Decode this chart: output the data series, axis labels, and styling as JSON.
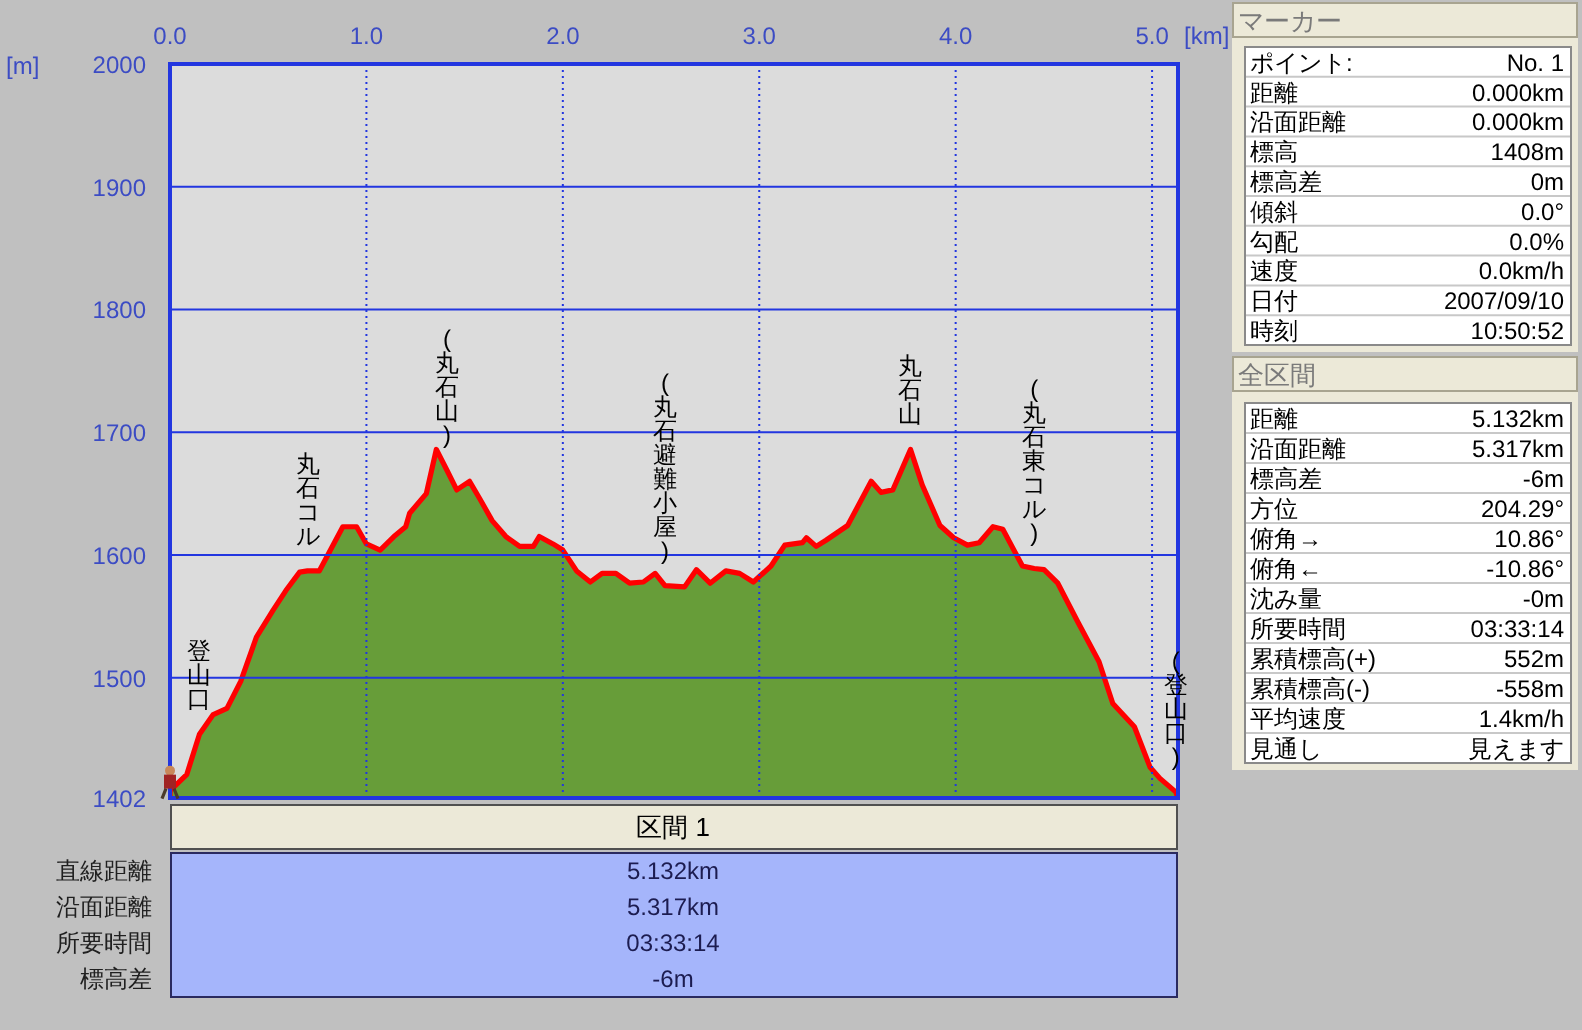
{
  "chart_data": [
    {
      "type": "area",
      "xlabel": "[km]",
      "ylabel": "[m]",
      "color": "#679d39",
      "x": [
        0,
        0.085,
        0.15,
        0.22,
        0.29,
        0.36,
        0.44,
        0.525,
        0.59,
        0.66,
        0.7,
        0.76,
        0.88,
        0.95,
        1.0,
        1.07,
        1.14,
        1.2,
        1.22,
        1.305,
        1.356,
        1.41,
        1.46,
        1.525,
        1.58,
        1.64,
        1.71,
        1.78,
        1.85,
        1.88,
        1.95,
        2.0,
        2.07,
        2.14,
        2.2,
        2.27,
        2.34,
        2.41,
        2.47,
        2.52,
        2.62,
        2.68,
        2.75,
        2.83,
        2.9,
        2.97,
        3.06,
        3.13,
        3.22,
        3.24,
        3.29,
        3.34,
        3.45,
        3.57,
        3.62,
        3.68,
        3.77,
        3.83,
        3.92,
        3.99,
        4.06,
        4.12,
        4.19,
        4.24,
        4.34,
        4.4,
        4.45,
        4.52,
        4.62,
        4.73,
        4.8,
        4.91,
        4.99,
        5.04,
        5.12,
        5.132
      ],
      "values": [
        1408,
        1421,
        1454,
        1470,
        1475,
        1497,
        1533,
        1555,
        1571,
        1586,
        1587,
        1587,
        1623,
        1623,
        1609,
        1604,
        1615,
        1623,
        1634,
        1650,
        1686,
        1669,
        1653,
        1660,
        1645,
        1628,
        1615,
        1607,
        1607,
        1615,
        1609,
        1604,
        1587,
        1578,
        1585,
        1585,
        1577,
        1578,
        1585,
        1575,
        1574,
        1588,
        1577,
        1587,
        1585,
        1578,
        1591,
        1608,
        1610,
        1614,
        1607,
        1612,
        1624,
        1660,
        1651,
        1653,
        1686,
        1657,
        1624,
        1614,
        1608,
        1610,
        1623,
        1621,
        1591,
        1589,
        1588,
        1577,
        1546,
        1513,
        1479,
        1460,
        1427,
        1418,
        1407,
        1402
      ],
      "xlim": [
        0,
        5.132
      ],
      "ylim": [
        1402,
        2000
      ],
      "xticks": [
        {
          "value": 0,
          "label": "0.0"
        },
        {
          "value": 1,
          "label": "1.0"
        },
        {
          "value": 2,
          "label": "2.0"
        },
        {
          "value": 3,
          "label": "3.0"
        },
        {
          "value": 4,
          "label": "4.0"
        },
        {
          "value": 5,
          "label": "5.0"
        }
      ],
      "yticks": [
        1402,
        1500,
        1600,
        1700,
        1800,
        1900,
        2000
      ],
      "grid": true,
      "annotations": [
        {
          "text": "登山口",
          "x": 0.15,
          "y": 1454
        },
        {
          "text": "丸石コル",
          "x": 0.7,
          "y": 1587
        },
        {
          "text": "(丸石山)",
          "x": 1.41,
          "y": 1669
        },
        {
          "text": "(丸石避難小屋)",
          "x": 2.52,
          "y": 1575
        },
        {
          "text": "丸石山",
          "x": 3.77,
          "y": 1686
        },
        {
          "text": "(丸石東コル)",
          "x": 4.4,
          "y": 1589
        },
        {
          "text": "(登山口)",
          "x": 5.12,
          "y": 1407
        }
      ]
    },
    {
      "type": "other",
      "title": "マーカー",
      "annotations": [
        "ポイント:",
        "No. 1",
        "距離",
        "0.000km",
        "沿面距離",
        "0.000km",
        "標高",
        "1408m",
        "標高差",
        "0m",
        "傾斜",
        "0.0°",
        "勾配",
        "0.0%",
        "速度",
        "0.0km/h",
        "日付",
        "2007/09/10",
        "時刻",
        "10:50:52"
      ]
    },
    {
      "type": "other",
      "title": "全区間",
      "annotations": [
        "距離",
        "5.132km",
        "沿面距離",
        "5.317km",
        "標高差",
        "-6m",
        "方位",
        "204.29°",
        "俯角→",
        "10.86°",
        "俯角←",
        "-10.86°",
        "沈み量",
        "-0m",
        "所要時間",
        "03:33:14",
        "累積標高(+)",
        "552m",
        "累積標高(-)",
        "-558m",
        "平均速度",
        "1.4km/h",
        "見通し",
        "見えます"
      ]
    },
    {
      "type": "other",
      "title": "区間 1",
      "annotations": [
        "直線距離",
        "5.132km",
        "沿面距離",
        "5.317km",
        "所要時間",
        "03:33:14",
        "標高差",
        "-6m"
      ]
    }
  ]
}
